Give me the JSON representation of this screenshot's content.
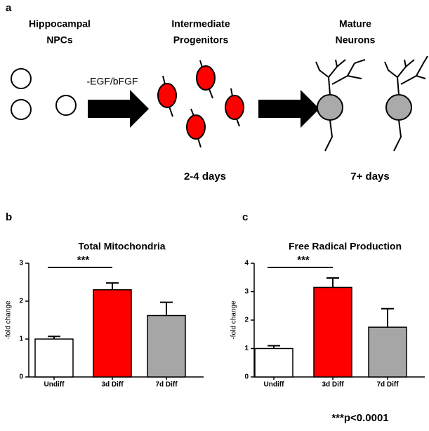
{
  "panels": [
    "a",
    "b",
    "c"
  ],
  "diagram": {
    "stage1": [
      "Hippocampal",
      "NPCs"
    ],
    "treatment": "-EGF/bFGF",
    "stage2": [
      "Intermediate",
      "Progenitors"
    ],
    "stage2_time": "2-4 days",
    "stage3": [
      "Mature",
      "Neurons"
    ],
    "stage3_time": "7+ days"
  },
  "chart_data": [
    {
      "type": "bar",
      "title": "Total Mitochondria",
      "ylabel": "-fold change",
      "categories": [
        "Undiff",
        "3d Diff",
        "7d Diff"
      ],
      "values": [
        1.0,
        2.3,
        1.62
      ],
      "errors": [
        0.07,
        0.18,
        0.35
      ],
      "colors": [
        "#ffffff",
        "#ff0000",
        "#a6a6a6"
      ],
      "ylim": [
        0,
        3
      ],
      "yticks": [
        0,
        1,
        2,
        3
      ],
      "annotation": "***"
    },
    {
      "type": "bar",
      "title": "Free Radical Production",
      "ylabel": "-fold change",
      "categories": [
        "Undiff",
        "3d Diff",
        "7d Diff"
      ],
      "values": [
        1.0,
        3.15,
        1.75
      ],
      "errors": [
        0.1,
        0.33,
        0.65
      ],
      "colors": [
        "#ffffff",
        "#ff0000",
        "#a6a6a6"
      ],
      "ylim": [
        0,
        4
      ],
      "yticks": [
        0,
        1,
        2,
        3,
        4
      ],
      "annotation": "***"
    }
  ],
  "footnote": "***p<0.0001"
}
